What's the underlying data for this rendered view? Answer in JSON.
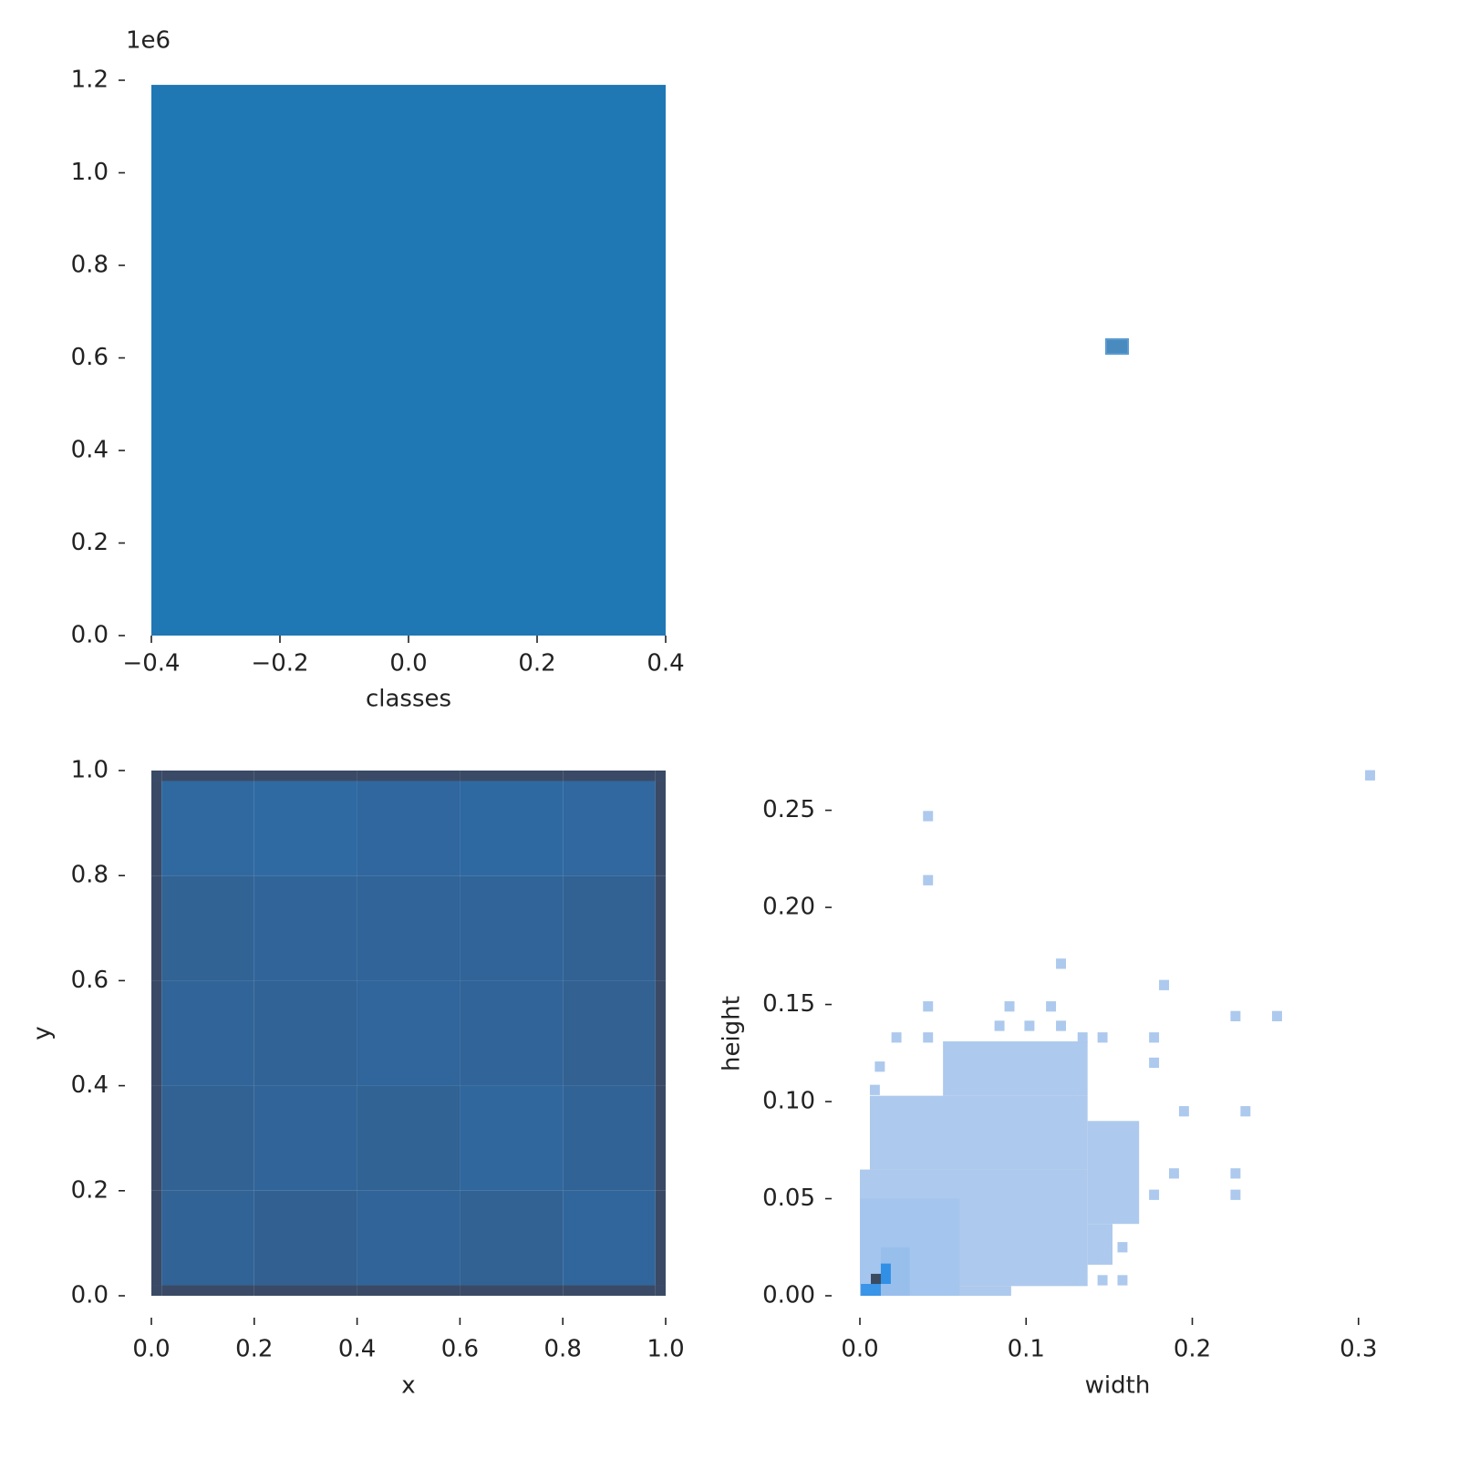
{
  "chart_data": [
    {
      "type": "histogram",
      "xlabel": "classes",
      "y_offset_label": "1e6",
      "bins": [
        -0.4,
        0.4
      ],
      "counts": [
        1190000
      ],
      "color": "#1f77b4",
      "xlim": [
        -0.4,
        0.4
      ],
      "ylim": [
        0,
        1200000
      ],
      "xticks": [
        {
          "value": -0.4,
          "label": "−0.4"
        },
        {
          "value": -0.2,
          "label": "−0.2"
        },
        {
          "value": 0,
          "label": "0.0"
        },
        0.2,
        0.4
      ],
      "yticks": [
        {
          "value": 0,
          "label": "0.0"
        },
        {
          "value": 200000,
          "label": "0.2"
        },
        {
          "value": 400000,
          "label": "0.4"
        },
        {
          "value": 600000,
          "label": "0.6"
        },
        {
          "value": 800000,
          "label": "0.8"
        },
        {
          "value": 1000000,
          "label": "1.0"
        },
        {
          "value": 1200000,
          "label": "1.2"
        }
      ]
    },
    {
      "type": "hist2d",
      "xlabel": "x",
      "ylabel": "y",
      "xbins": [
        0,
        0.02,
        0.2,
        0.4,
        0.6,
        0.8,
        0.98,
        1
      ],
      "ybins": [
        0,
        0.02,
        0.2,
        0.4,
        0.6,
        0.8,
        0.98,
        1
      ],
      "counts": [
        [
          100,
          100,
          100,
          100,
          100,
          100,
          100
        ],
        [
          100,
          62,
          66,
          60,
          64,
          58,
          100
        ],
        [
          100,
          64,
          60,
          63,
          57,
          62,
          100
        ],
        [
          100,
          60,
          62,
          58,
          61,
          65,
          100
        ],
        [
          100,
          63,
          59,
          61,
          60,
          64,
          100
        ],
        [
          100,
          54,
          52,
          56,
          53,
          55,
          100
        ],
        [
          100,
          100,
          100,
          100,
          100,
          100,
          100
        ]
      ],
      "cmap": [
        "#2f6aa3",
        "#3a4a66"
      ],
      "xlim": [
        0,
        1
      ],
      "ylim": [
        0,
        1
      ],
      "xticks": [
        {
          "value": 0,
          "label": "0.0"
        },
        0.2,
        0.4,
        0.6,
        0.8,
        {
          "value": 1,
          "label": "1.0"
        }
      ],
      "yticks": [
        {
          "value": 0,
          "label": "0.0"
        },
        0.2,
        0.4,
        0.6,
        0.8,
        {
          "value": 1,
          "label": "1.0"
        }
      ]
    },
    {
      "type": "hist2d",
      "xlabel": "width",
      "ylabel": "height",
      "binwidth": [
        0.006,
        0.0053
      ],
      "regions": {
        "x0": [
          0,
          0,
          0.006,
          0.05,
          0.137,
          0.137,
          0,
          0.0126,
          0.0006,
          0.0126,
          0.0066
        ],
        "x1": [
          0.091,
          0.137,
          0.137,
          0.137,
          0.168,
          0.152,
          0.06,
          0.03,
          0.0126,
          0.0186,
          0.0126
        ],
        "y0": [
          0,
          0.005,
          0.065,
          0.103,
          0.037,
          0.016,
          0,
          0,
          0,
          0.0061,
          0.0061
        ],
        "y1": [
          0.005,
          0.065,
          0.103,
          0.131,
          0.09,
          0.037,
          0.05,
          0.025,
          0.0061,
          0.0166,
          0.0113
        ],
        "counts": [
          1,
          1,
          1,
          1,
          1,
          1,
          3,
          6,
          28,
          30,
          60
        ]
      },
      "cells": {
        "x": [
          0.307,
          0.041,
          0.041,
          0.121,
          0.183,
          0.041,
          0.09,
          0.115,
          0.226,
          0.251,
          0.022,
          0.041,
          0.084,
          0.102,
          0.121,
          0.134,
          0.146,
          0.177,
          0.195,
          0.232,
          0.189,
          0.226,
          0.226,
          0.177,
          0.158,
          0.146,
          0.158,
          0.146,
          0.127,
          0.177,
          0.012,
          0.009
        ],
        "y": [
          0.268,
          0.247,
          0.214,
          0.171,
          0.16,
          0.149,
          0.149,
          0.149,
          0.144,
          0.144,
          0.133,
          0.133,
          0.139,
          0.139,
          0.139,
          0.133,
          0.133,
          0.133,
          0.095,
          0.095,
          0.063,
          0.063,
          0.052,
          0.052,
          0.025,
          0.019,
          0.008,
          0.008,
          0.008,
          0.12,
          0.118,
          0.106
        ],
        "counts": [
          1,
          1,
          1,
          1,
          1,
          1,
          1,
          1,
          1,
          1,
          1,
          1,
          1,
          1,
          1,
          1,
          1,
          1,
          1,
          1,
          1,
          1,
          1,
          1,
          1,
          1,
          1,
          1,
          1,
          1,
          1,
          1
        ]
      },
      "cmap": [
        "#adc9ed",
        "#2f8fe6",
        "#3a4a60"
      ],
      "xlim": [
        0,
        0.31
      ],
      "ylim": [
        0,
        0.27
      ],
      "xticks": [
        {
          "value": 0,
          "label": "0.0"
        },
        0.1,
        0.2,
        0.3
      ],
      "yticks": [
        {
          "value": 0,
          "label": "0.00"
        },
        {
          "value": 0.05,
          "label": "0.05"
        },
        {
          "value": 0.1,
          "label": "0.10"
        },
        {
          "value": 0.15,
          "label": "0.15"
        },
        {
          "value": 0.2,
          "label": "0.20"
        },
        {
          "value": 0.25,
          "label": "0.25"
        }
      ]
    }
  ]
}
